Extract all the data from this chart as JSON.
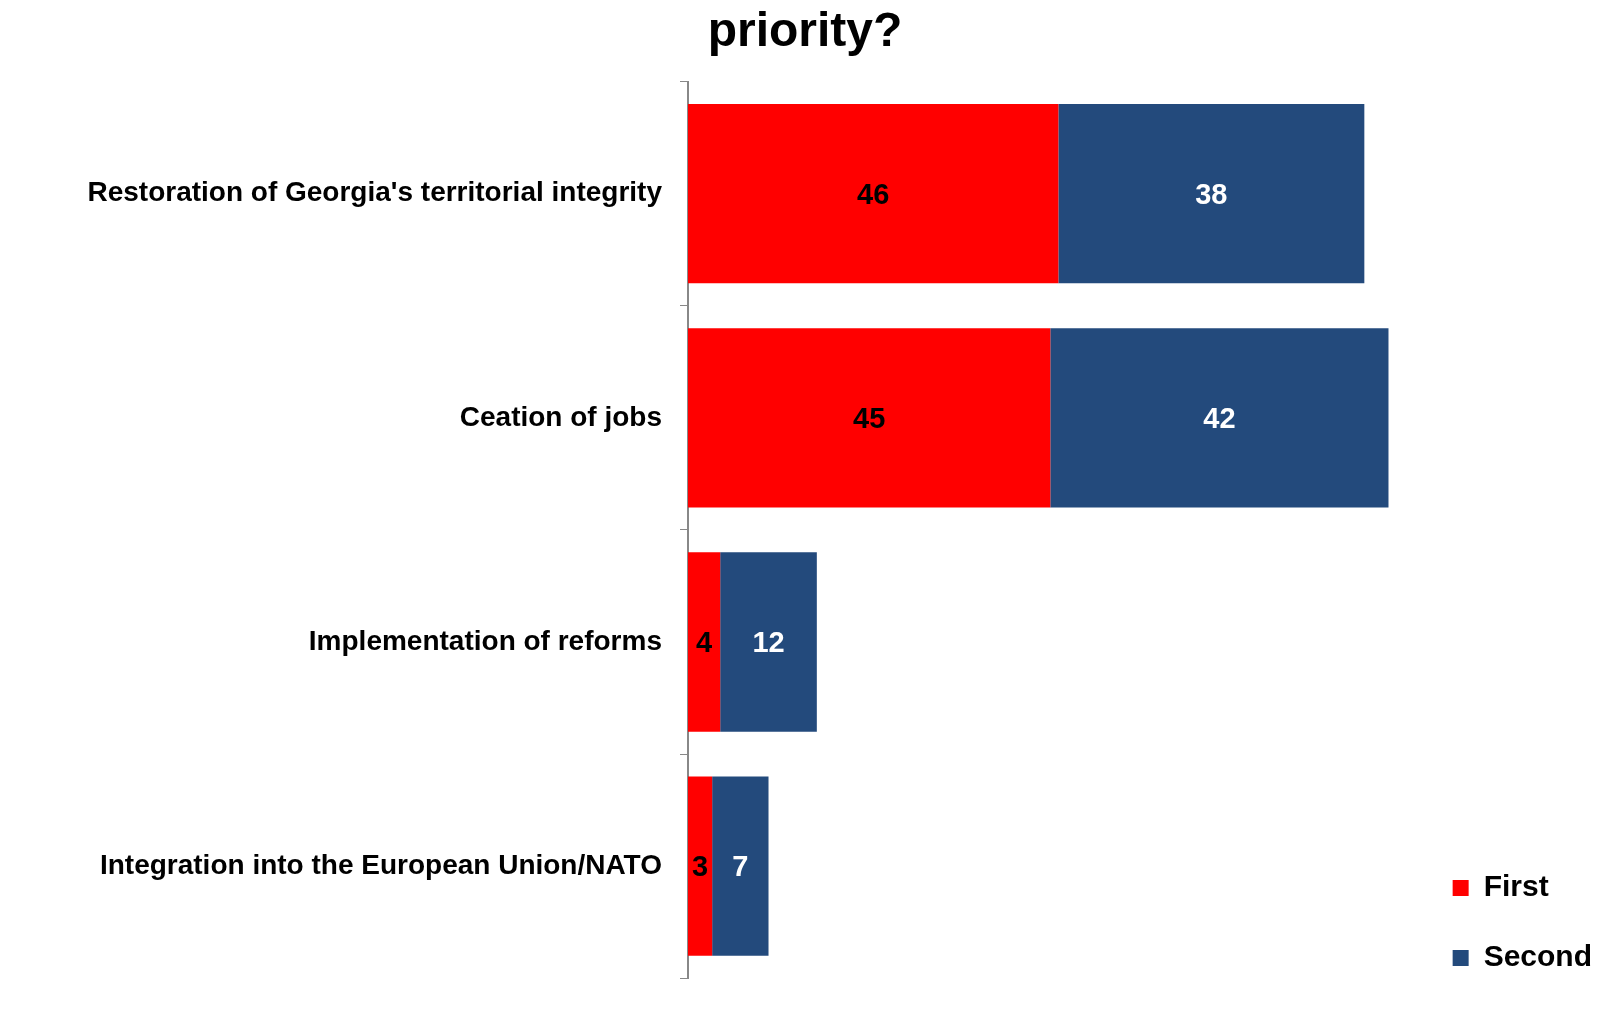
{
  "chart_data": {
    "type": "bar",
    "orientation": "horizontal",
    "stacked": true,
    "title": "priority?",
    "categories": [
      "Restoration of Georgia's territorial integrity",
      "Ceation of jobs",
      "Implementation of reforms",
      "Integration into the European Union/NATO"
    ],
    "series": [
      {
        "name": "First",
        "color": "#ff0000",
        "values": [
          46,
          45,
          4,
          3
        ]
      },
      {
        "name": "Second",
        "color": "#234a7c",
        "values": [
          38,
          42,
          12,
          7
        ]
      }
    ],
    "tick_labels": "y",
    "data_labels": true,
    "legend": "bottom right",
    "grid": false
  }
}
